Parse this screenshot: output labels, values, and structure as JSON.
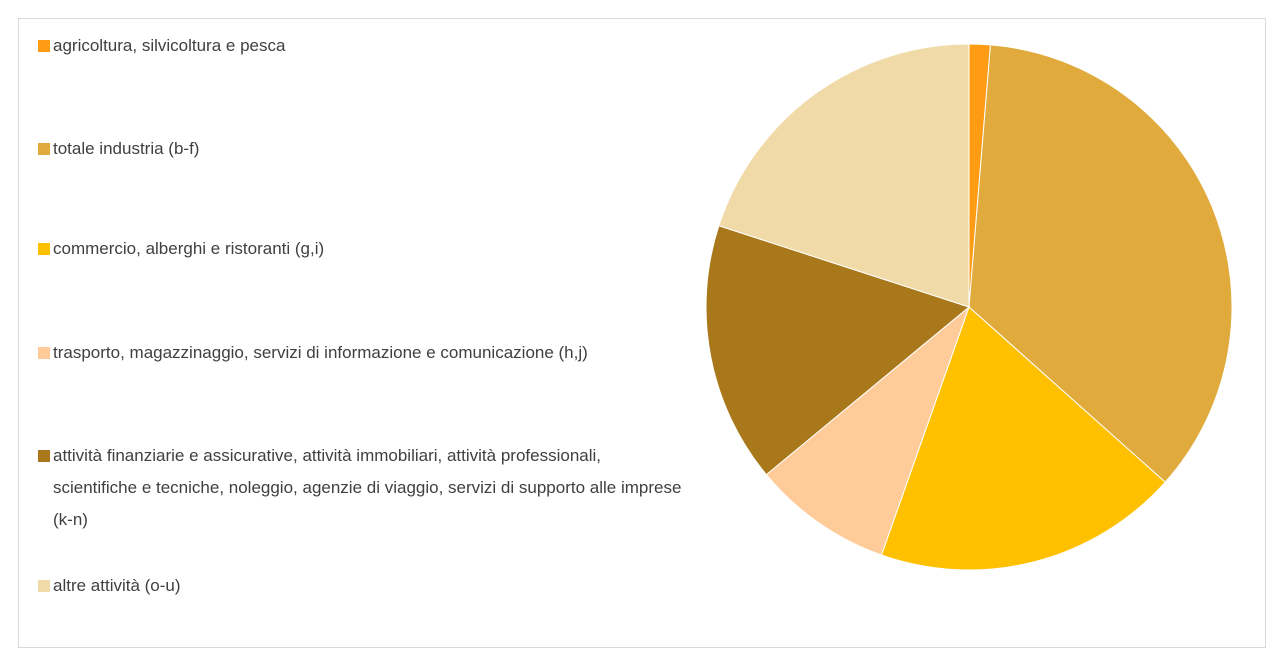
{
  "chart_data": {
    "type": "pie",
    "categories": [
      "agricoltura, silvicoltura e pesca",
      "totale industria (b-f)",
      "commercio, alberghi e ristoranti (g,i)",
      "trasporto, magazzinaggio, servizi di informazione e comunicazione (h,j)",
      "attività finanziarie e assicurative, attività immobiliari, attività professionali, scientifiche e tecniche, noleggio, agenzie di viaggio, servizi di supporto alle imprese (k-n)",
      "altre attività (o-u)"
    ],
    "values": [
      1.3,
      35.3,
      18.8,
      8.6,
      16,
      20
    ],
    "colors": [
      "#ff9c14",
      "#e0aa3c",
      "#ffc000",
      "#ffcc99",
      "#a8781a",
      "#f0daa8"
    ],
    "legend": "left"
  }
}
